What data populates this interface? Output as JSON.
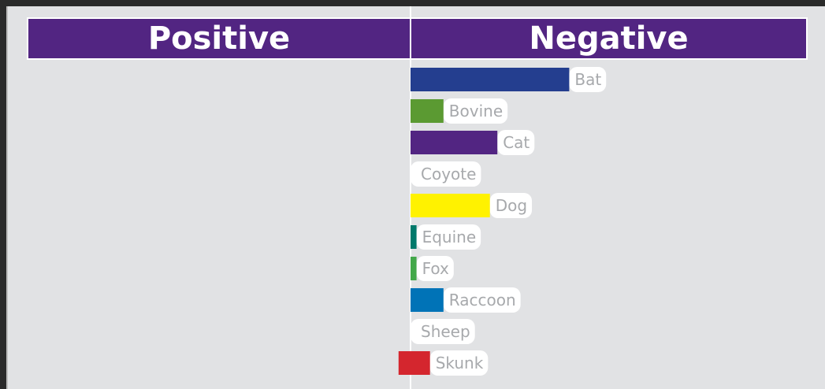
{
  "headers": {
    "positive": "Positive",
    "negative": "Negative"
  },
  "chart_data": {
    "type": "bar",
    "orientation": "horizontal",
    "categories": [
      "Bat",
      "Bovine",
      "Cat",
      "Coyote",
      "Dog",
      "Equine",
      "Fox",
      "Raccoon",
      "Sheep",
      "Skunk"
    ],
    "series": [
      {
        "name": "Positive",
        "values": [
          0,
          0,
          0,
          0,
          0,
          0,
          0,
          0,
          0,
          8
        ]
      },
      {
        "name": "Negative",
        "values": [
          106,
          22,
          58,
          0,
          53,
          4,
          4,
          22,
          0,
          13
        ]
      }
    ],
    "colors": [
      "#243e8f",
      "#5b9a32",
      "#522582",
      "#ffffff",
      "#fff200",
      "#00796b",
      "#43a84a",
      "#0073b7",
      "#ffffff",
      "#d4262e"
    ],
    "xlim": [
      -266,
      266
    ],
    "grid": false,
    "legend": "none"
  }
}
